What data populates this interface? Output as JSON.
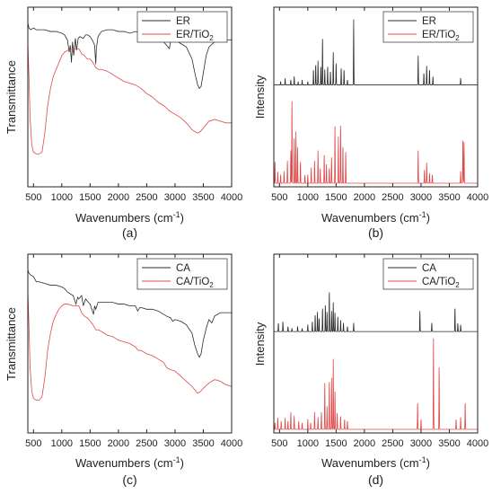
{
  "figure": {
    "panels_count": 4
  },
  "chart_data": [
    {
      "panel": "(a)",
      "type": "line",
      "ylabel": "Transmittance",
      "xlabel": "Wavenumbers (cm",
      "xlabel_sup": "-1",
      "xlabel_tail": ")",
      "xlim": [
        400,
        4000
      ],
      "xticks": [
        500,
        1000,
        1500,
        2000,
        2500,
        3000,
        3500,
        4000
      ],
      "ylim": [
        0,
        1
      ],
      "yticks_shown": false,
      "legend": {
        "position": "top-right"
      },
      "series": [
        {
          "name": "ER",
          "color": "#2b2b2b",
          "x": [
            400,
            420,
            450,
            500,
            550,
            600,
            700,
            800,
            900,
            1000,
            1050,
            1100,
            1130,
            1150,
            1170,
            1190,
            1210,
            1240,
            1260,
            1290,
            1320,
            1380,
            1420,
            1460,
            1500,
            1540,
            1580,
            1600,
            1610,
            1640,
            1700,
            1800,
            1900,
            2000,
            2100,
            2200,
            2300,
            2400,
            2500,
            2600,
            2700,
            2800,
            2850,
            2900,
            2920,
            2960,
            3000,
            3100,
            3200,
            3300,
            3350,
            3400,
            3430,
            3460,
            3500,
            3550,
            3600,
            3700,
            3800,
            3900,
            4000
          ],
          "y": [
            0.93,
            0.9,
            0.89,
            0.9,
            0.89,
            0.89,
            0.89,
            0.88,
            0.88,
            0.87,
            0.86,
            0.83,
            0.76,
            0.8,
            0.7,
            0.82,
            0.74,
            0.84,
            0.77,
            0.84,
            0.85,
            0.84,
            0.86,
            0.86,
            0.85,
            0.83,
            0.8,
            0.69,
            0.78,
            0.85,
            0.88,
            0.89,
            0.89,
            0.88,
            0.88,
            0.87,
            0.88,
            0.87,
            0.87,
            0.86,
            0.84,
            0.82,
            0.8,
            0.78,
            0.82,
            0.83,
            0.83,
            0.81,
            0.79,
            0.72,
            0.64,
            0.57,
            0.55,
            0.56,
            0.64,
            0.74,
            0.79,
            0.82,
            0.83,
            0.83,
            0.83
          ]
        },
        {
          "name": "ER/TiO",
          "name_sub": "2",
          "color": "#e04848",
          "x": [
            400,
            420,
            440,
            470,
            500,
            550,
            600,
            650,
            700,
            750,
            800,
            850,
            900,
            950,
            1000,
            1050,
            1100,
            1200,
            1300,
            1350,
            1400,
            1450,
            1500,
            1550,
            1600,
            1650,
            1700,
            1800,
            1900,
            2000,
            2100,
            2200,
            2300,
            2400,
            2500,
            2600,
            2700,
            2800,
            2900,
            3000,
            3100,
            3200,
            3300,
            3400,
            3450,
            3500,
            3600,
            3700,
            3800,
            3900,
            4000
          ],
          "y": [
            0.82,
            0.62,
            0.38,
            0.22,
            0.18,
            0.17,
            0.17,
            0.18,
            0.29,
            0.45,
            0.55,
            0.62,
            0.66,
            0.7,
            0.74,
            0.76,
            0.77,
            0.78,
            0.78,
            0.75,
            0.74,
            0.72,
            0.72,
            0.7,
            0.67,
            0.66,
            0.66,
            0.65,
            0.63,
            0.61,
            0.59,
            0.58,
            0.57,
            0.55,
            0.52,
            0.5,
            0.47,
            0.45,
            0.42,
            0.4,
            0.38,
            0.35,
            0.31,
            0.29,
            0.3,
            0.32,
            0.36,
            0.37,
            0.36,
            0.35,
            0.35
          ]
        }
      ]
    },
    {
      "panel": "(b)",
      "type": "line",
      "ylabel": "Intensity",
      "xlabel": "Wavenumbers (cm",
      "xlabel_sup": "-1",
      "xlabel_tail": ")",
      "xlim": [
        400,
        4000
      ],
      "xticks": [
        500,
        1000,
        1500,
        2000,
        2500,
        3000,
        3500,
        4000
      ],
      "ylim": [
        0,
        1
      ],
      "yticks_shown": false,
      "legend": {
        "position": "top-right"
      },
      "series": [
        {
          "name": "ER",
          "color": "#2b2b2b",
          "baseline": 0.57,
          "peaks": [
            [
              520,
              0.02
            ],
            [
              600,
              0.04
            ],
            [
              700,
              0.03
            ],
            [
              760,
              0.05
            ],
            [
              830,
              0.02
            ],
            [
              900,
              0.03
            ],
            [
              1000,
              0.02
            ],
            [
              1100,
              0.09
            ],
            [
              1140,
              0.12
            ],
            [
              1180,
              0.14
            ],
            [
              1230,
              0.11
            ],
            [
              1260,
              0.28
            ],
            [
              1300,
              0.09
            ],
            [
              1350,
              0.11
            ],
            [
              1400,
              0.08
            ],
            [
              1450,
              0.19
            ],
            [
              1500,
              0.13
            ],
            [
              1590,
              0.1
            ],
            [
              1640,
              0.09
            ],
            [
              1700,
              0.03
            ],
            [
              1810,
              0.38
            ],
            [
              2950,
              0.17
            ],
            [
              3050,
              0.07
            ],
            [
              3100,
              0.11
            ],
            [
              3150,
              0.09
            ],
            [
              3210,
              0.05
            ],
            [
              3700,
              0.04
            ]
          ]
        },
        {
          "name": "ER/TiO",
          "name_sub": "2",
          "color": "#e04848",
          "baseline": 0.0,
          "peaks": [
            [
              420,
              0.13
            ],
            [
              470,
              0.07
            ],
            [
              520,
              0.05
            ],
            [
              580,
              0.07
            ],
            [
              640,
              0.13
            ],
            [
              700,
              0.19
            ],
            [
              720,
              0.5
            ],
            [
              760,
              0.26
            ],
            [
              790,
              0.3
            ],
            [
              820,
              0.21
            ],
            [
              870,
              0.13
            ],
            [
              950,
              0.05
            ],
            [
              1000,
              0.05
            ],
            [
              1060,
              0.09
            ],
            [
              1120,
              0.13
            ],
            [
              1180,
              0.19
            ],
            [
              1220,
              0.09
            ],
            [
              1290,
              0.17
            ],
            [
              1330,
              0.11
            ],
            [
              1380,
              0.09
            ],
            [
              1420,
              0.15
            ],
            [
              1480,
              0.33
            ],
            [
              1540,
              0.27
            ],
            [
              1580,
              0.35
            ],
            [
              1620,
              0.22
            ],
            [
              1670,
              0.19
            ],
            [
              2950,
              0.19
            ],
            [
              3060,
              0.08
            ],
            [
              3100,
              0.12
            ],
            [
              3150,
              0.06
            ],
            [
              3200,
              0.05
            ],
            [
              3700,
              0.07
            ],
            [
              3740,
              0.26
            ],
            [
              3760,
              0.24
            ]
          ]
        }
      ]
    },
    {
      "panel": "(c)",
      "type": "line",
      "ylabel": "Transmittance",
      "xlabel": "Wavenumbers (cm",
      "xlabel_sup": "-1",
      "xlabel_tail": ")",
      "xlim": [
        400,
        4000
      ],
      "xticks": [
        500,
        1000,
        1500,
        2000,
        2500,
        3000,
        3500,
        4000
      ],
      "ylim": [
        0,
        1
      ],
      "yticks_shown": false,
      "legend": {
        "position": "top-right"
      },
      "series": [
        {
          "name": "CA",
          "color": "#2b2b2b",
          "x": [
            400,
            420,
            450,
            500,
            550,
            600,
            700,
            800,
            900,
            1000,
            1050,
            1100,
            1150,
            1200,
            1250,
            1280,
            1300,
            1350,
            1380,
            1420,
            1470,
            1500,
            1560,
            1580,
            1600,
            1640,
            1700,
            1800,
            1900,
            2000,
            2100,
            2200,
            2300,
            2340,
            2380,
            2400,
            2500,
            2600,
            2700,
            2800,
            2850,
            2920,
            2960,
            3000,
            3100,
            3200,
            3300,
            3350,
            3400,
            3430,
            3460,
            3500,
            3560,
            3600,
            3650,
            3700,
            3800,
            3900,
            4000
          ],
          "y": [
            0.93,
            0.91,
            0.9,
            0.89,
            0.86,
            0.86,
            0.85,
            0.84,
            0.84,
            0.83,
            0.82,
            0.8,
            0.79,
            0.78,
            0.73,
            0.77,
            0.76,
            0.78,
            0.72,
            0.76,
            0.74,
            0.73,
            0.67,
            0.72,
            0.7,
            0.74,
            0.74,
            0.74,
            0.74,
            0.73,
            0.73,
            0.72,
            0.72,
            0.69,
            0.71,
            0.71,
            0.7,
            0.7,
            0.69,
            0.67,
            0.66,
            0.65,
            0.63,
            0.64,
            0.63,
            0.61,
            0.56,
            0.49,
            0.44,
            0.42,
            0.44,
            0.52,
            0.6,
            0.64,
            0.62,
            0.66,
            0.68,
            0.68,
            0.68
          ]
        },
        {
          "name": "CA/TiO",
          "name_sub": "2",
          "color": "#e04848",
          "x": [
            400,
            420,
            440,
            470,
            500,
            550,
            600,
            650,
            700,
            750,
            800,
            850,
            900,
            950,
            1000,
            1050,
            1100,
            1200,
            1300,
            1350,
            1400,
            1450,
            1500,
            1550,
            1600,
            1650,
            1700,
            1800,
            1900,
            2000,
            2100,
            2200,
            2300,
            2350,
            2400,
            2500,
            2600,
            2700,
            2800,
            2850,
            2900,
            3000,
            3100,
            3200,
            3300,
            3400,
            3450,
            3500,
            3600,
            3700,
            3800,
            3900,
            4000
          ],
          "y": [
            0.82,
            0.6,
            0.36,
            0.22,
            0.18,
            0.17,
            0.17,
            0.19,
            0.3,
            0.46,
            0.56,
            0.63,
            0.67,
            0.7,
            0.72,
            0.73,
            0.73,
            0.72,
            0.72,
            0.68,
            0.66,
            0.65,
            0.63,
            0.61,
            0.58,
            0.58,
            0.57,
            0.55,
            0.54,
            0.52,
            0.51,
            0.5,
            0.48,
            0.46,
            0.46,
            0.44,
            0.43,
            0.41,
            0.39,
            0.36,
            0.35,
            0.34,
            0.31,
            0.28,
            0.25,
            0.21,
            0.22,
            0.24,
            0.27,
            0.29,
            0.28,
            0.26,
            0.25
          ]
        }
      ]
    },
    {
      "panel": "(d)",
      "type": "line",
      "ylabel": "Intensity",
      "xlabel": "Wavenumbers (cm",
      "xlabel_sup": "-1",
      "xlabel_tail": ")",
      "xlim": [
        400,
        4000
      ],
      "xticks": [
        500,
        1000,
        1500,
        2000,
        2500,
        3000,
        3500,
        4000
      ],
      "ylim": [
        0,
        1
      ],
      "yticks_shown": false,
      "legend": {
        "position": "top-right"
      },
      "series": [
        {
          "name": "CA",
          "color": "#2b2b2b",
          "baseline": 0.57,
          "peaks": [
            [
              480,
              0.05
            ],
            [
              560,
              0.06
            ],
            [
              650,
              0.03
            ],
            [
              720,
              0.02
            ],
            [
              820,
              0.03
            ],
            [
              900,
              0.02
            ],
            [
              1000,
              0.04
            ],
            [
              1080,
              0.06
            ],
            [
              1130,
              0.1
            ],
            [
              1170,
              0.12
            ],
            [
              1200,
              0.08
            ],
            [
              1260,
              0.14
            ],
            [
              1310,
              0.16
            ],
            [
              1340,
              0.12
            ],
            [
              1380,
              0.24
            ],
            [
              1420,
              0.12
            ],
            [
              1450,
              0.17
            ],
            [
              1480,
              0.11
            ],
            [
              1530,
              0.09
            ],
            [
              1580,
              0.07
            ],
            [
              1630,
              0.05
            ],
            [
              1700,
              0.03
            ],
            [
              1810,
              0.05
            ],
            [
              2980,
              0.12
            ],
            [
              3190,
              0.05
            ],
            [
              3600,
              0.14
            ],
            [
              3650,
              0.05
            ],
            [
              3700,
              0.04
            ]
          ]
        },
        {
          "name": "CA/TiO",
          "name_sub": "2",
          "color": "#e04848",
          "baseline": 0.0,
          "peaks": [
            [
              420,
              0.04
            ],
            [
              470,
              0.07
            ],
            [
              530,
              0.05
            ],
            [
              600,
              0.07
            ],
            [
              650,
              0.05
            ],
            [
              700,
              0.1
            ],
            [
              760,
              0.08
            ],
            [
              840,
              0.05
            ],
            [
              900,
              0.04
            ],
            [
              1000,
              0.06
            ],
            [
              1050,
              0.04
            ],
            [
              1120,
              0.1
            ],
            [
              1180,
              0.07
            ],
            [
              1240,
              0.1
            ],
            [
              1300,
              0.27
            ],
            [
              1340,
              0.14
            ],
            [
              1380,
              0.29
            ],
            [
              1420,
              0.3
            ],
            [
              1450,
              0.41
            ],
            [
              1480,
              0.22
            ],
            [
              1520,
              0.1
            ],
            [
              1580,
              0.08
            ],
            [
              1650,
              0.06
            ],
            [
              1700,
              0.05
            ],
            [
              2940,
              0.16
            ],
            [
              3000,
              0.06
            ],
            [
              3220,
              0.53
            ],
            [
              3320,
              0.38
            ],
            [
              3620,
              0.06
            ],
            [
              3700,
              0.07
            ],
            [
              3780,
              0.16
            ]
          ]
        }
      ]
    }
  ]
}
